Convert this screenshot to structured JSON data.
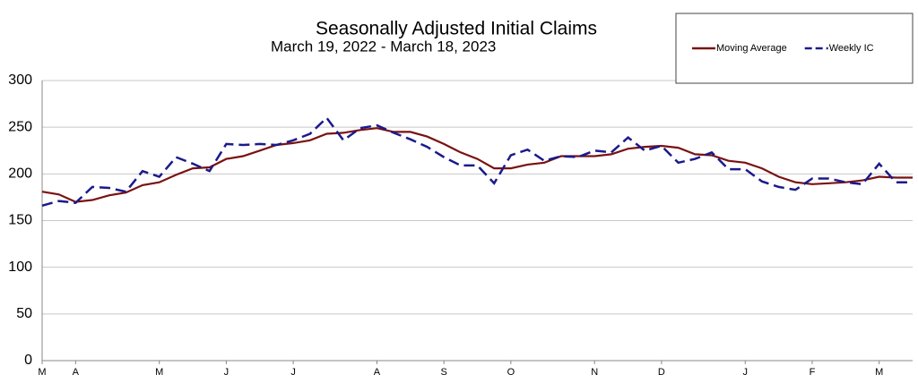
{
  "chart_data": {
    "type": "line",
    "title": "Seasonally Adjusted Initial Claims",
    "subtitle": "March 19, 2022 - March 18, 2023",
    "categories": [
      "M",
      null,
      "A",
      null,
      null,
      null,
      null,
      "M",
      null,
      null,
      null,
      "J",
      null,
      null,
      null,
      "J",
      null,
      null,
      null,
      null,
      "A",
      null,
      null,
      null,
      "S",
      null,
      null,
      null,
      "O",
      null,
      null,
      null,
      null,
      "N",
      null,
      null,
      null,
      "D",
      null,
      null,
      null,
      null,
      "J",
      null,
      null,
      null,
      "F",
      null,
      null,
      null,
      "M",
      null,
      null
    ],
    "series": [
      {
        "name": "Moving Average",
        "color": "#7a1212",
        "dash": false,
        "values": [
          181,
          178,
          170,
          172,
          177,
          180,
          188,
          191,
          199,
          206,
          207,
          216,
          219,
          225,
          231,
          233,
          236,
          243,
          244,
          247,
          249,
          245,
          245,
          240,
          232,
          223,
          216,
          206,
          206,
          210,
          212,
          219,
          219,
          219,
          221,
          227,
          229,
          230,
          228,
          221,
          220,
          214,
          212,
          206,
          197,
          191,
          189,
          190,
          191,
          193,
          197,
          196,
          196
        ]
      },
      {
        "name": "Weekly IC",
        "color": "#1a1a8c",
        "dash": true,
        "values": [
          166,
          171,
          169,
          186,
          185,
          181,
          203,
          197,
          218,
          211,
          203,
          232,
          231,
          232,
          231,
          236,
          243,
          260,
          236,
          249,
          252,
          244,
          237,
          229,
          218,
          209,
          209,
          190,
          220,
          226,
          214,
          219,
          218,
          225,
          223,
          239,
          225,
          230,
          212,
          216,
          223,
          205,
          205,
          192,
          186,
          183,
          195,
          195,
          191,
          189,
          211,
          191,
          191
        ]
      }
    ],
    "ylim": [
      0,
      300
    ],
    "yticks": [
      0,
      50,
      100,
      150,
      200,
      250,
      300
    ],
    "grid": true,
    "legend": "top-right"
  }
}
